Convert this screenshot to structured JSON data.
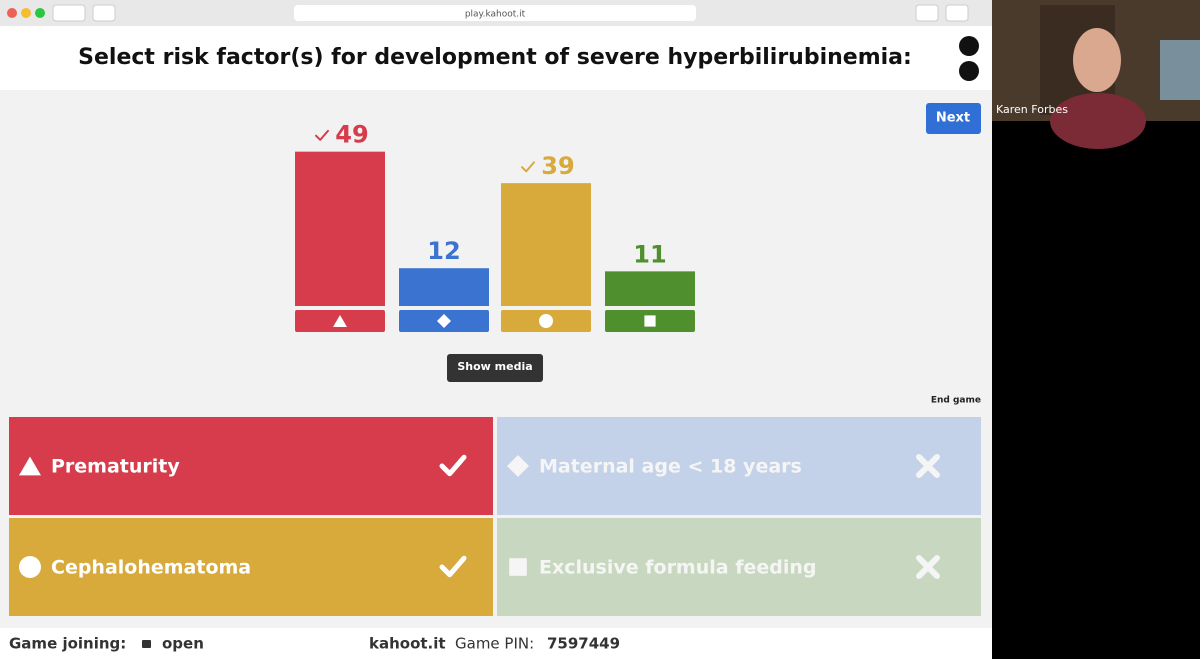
{
  "browser": {
    "url": "play.kahoot.it"
  },
  "question": "Select risk factor(s) for development of severe hyperbilirubinemia:",
  "next_button": "Next",
  "results": {
    "type": "bar",
    "values": [
      49,
      12,
      39,
      11
    ],
    "colors": [
      "#d63c4b",
      "#3a74d0",
      "#d8a93b",
      "#4f8f2e"
    ],
    "correct": [
      true,
      false,
      true,
      false
    ]
  },
  "show_media": "Show media",
  "end_game": "End game",
  "answers": [
    {
      "text": "Prematurity",
      "correct": true
    },
    {
      "text": "Maternal age < 18 years",
      "correct": false
    },
    {
      "text": "Cephalohematoma",
      "correct": true
    },
    {
      "text": "Exclusive formula feeding",
      "correct": false
    }
  ],
  "footer": {
    "joining_label": "Game joining:",
    "joining_status": "open",
    "site": "kahoot.it",
    "pin_label": "Game PIN:",
    "pin": "7597449"
  },
  "participant": {
    "name": "Karen Forbes"
  }
}
